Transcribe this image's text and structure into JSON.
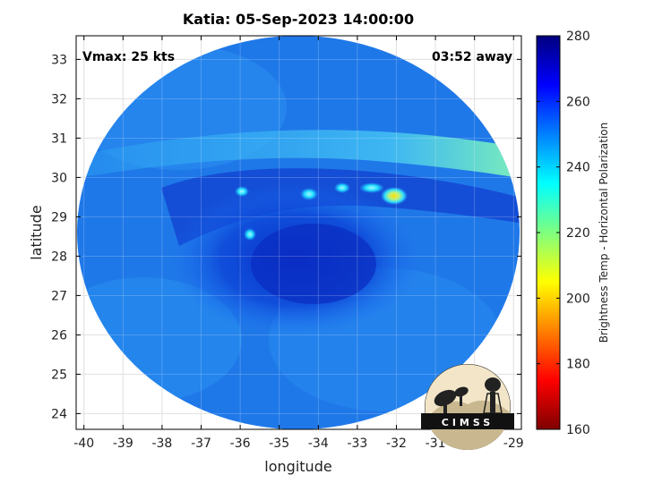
{
  "chart_data": {
    "type": "heatmap",
    "title": "Katia: 05-Sep-2023 14:00:00",
    "xlabel": "longitude",
    "ylabel": "latitude",
    "xlim": [
      -40.2,
      -28.8
    ],
    "ylim": [
      23.6,
      33.6
    ],
    "xticks": [
      -40,
      -39,
      -38,
      -37,
      -36,
      -35,
      -34,
      -33,
      -32,
      -31,
      -30,
      -29
    ],
    "yticks": [
      24,
      25,
      26,
      27,
      28,
      29,
      30,
      31,
      32,
      33
    ],
    "grid": true,
    "annotations": {
      "vmax": "Vmax: 25 kts",
      "time_away": "03:52 away"
    },
    "colorbar": {
      "label": "Brightness Temp - Horizontal Polarization",
      "range": [
        160,
        280
      ],
      "ticks": [
        160,
        180,
        200,
        220,
        240,
        260,
        280
      ],
      "colormap": "jet"
    },
    "features": [
      {
        "name": "background field",
        "value": 252
      },
      {
        "name": "central cold swirl",
        "lon": -34.9,
        "lat": 28.3,
        "value": 266
      },
      {
        "name": "warm band north",
        "lon_range": [
          -40,
          -29
        ],
        "lat": 30.9,
        "value": 244
      },
      {
        "name": "warm spot",
        "lon": -32.1,
        "lat": 29.5,
        "value": 205
      },
      {
        "name": "warm spot",
        "lon": -34.3,
        "lat": 29.5,
        "value": 232
      },
      {
        "name": "warm spot",
        "lon": -33.6,
        "lat": 29.6,
        "value": 234
      },
      {
        "name": "warm spot",
        "lon": -36.0,
        "lat": 29.6,
        "value": 238
      },
      {
        "name": "warm spot",
        "lon": -35.8,
        "lat": 28.5,
        "value": 240
      }
    ]
  },
  "logo": {
    "text": "CIMSS"
  },
  "colors": {
    "frame": "#000000",
    "grid": "#d9d9d9"
  }
}
